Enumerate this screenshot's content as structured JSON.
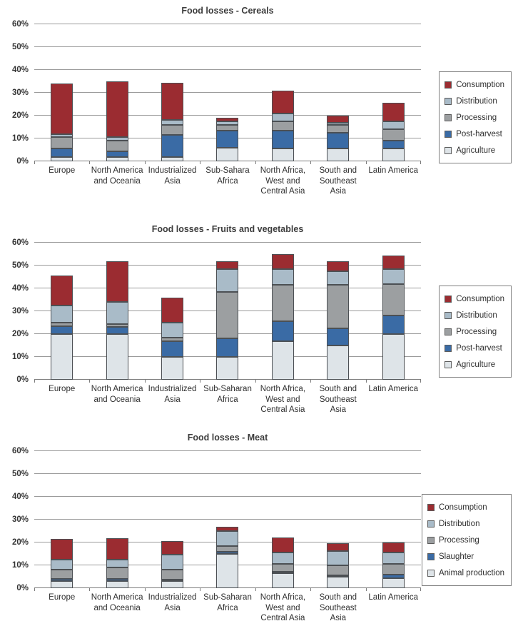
{
  "figure_name": "Food losses by region and supply-chain stage",
  "palette": {
    "consumption": "#9b2c31",
    "distribution": "#a9bbc8",
    "processing": "#9c9fa1",
    "post_harvest_blue": "#3a6ba5",
    "agriculture_light": "#dee4e8",
    "segment_outline": "#4c5054",
    "gridline": "#9b9b9b",
    "axis": "#7d7d7d",
    "text": "#2f2f2f"
  },
  "chart_data": [
    {
      "type": "bar",
      "stacked": true,
      "title": "Food losses - Cereals",
      "xlabel": "",
      "ylabel": "",
      "ylim": [
        0,
        60
      ],
      "grid": true,
      "legend_position": "right",
      "yticks": [
        "0%",
        "10%",
        "20%",
        "30%",
        "40%",
        "50%",
        "60%"
      ],
      "categories": [
        "Europe",
        "North America and Oceania",
        "Industrialized Asia",
        "Sub-Sahara Africa",
        "North Africa, West and Central Asia",
        "South and Southeast Asia",
        "Latin America"
      ],
      "series": [
        {
          "name": "Agriculture",
          "color": "#dee4e8",
          "values": [
            2,
            2,
            2,
            6,
            5.5,
            5.5,
            5.5
          ]
        },
        {
          "name": "Post-harvest",
          "color": "#3a6ba5",
          "values": [
            3.5,
            2.5,
            9.5,
            7.5,
            8,
            7,
            3.5
          ]
        },
        {
          "name": "Processing",
          "color": "#9c9fa1",
          "values": [
            5,
            4.5,
            4.5,
            2.5,
            4,
            3.5,
            5
          ]
        },
        {
          "name": "Distribution",
          "color": "#a9bbc8",
          "values": [
            1.5,
            1.5,
            2,
            1.5,
            3.5,
            1,
            3.5
          ]
        },
        {
          "name": "Consumption",
          "color": "#9b2c31",
          "values": [
            22,
            24.5,
            16.5,
            1.5,
            10,
            3,
            8
          ]
        }
      ],
      "legend_top_to_bottom": [
        "Consumption",
        "Distribution",
        "Processing",
        "Post-harvest",
        "Agriculture"
      ]
    },
    {
      "type": "bar",
      "stacked": true,
      "title": "Food losses - Fruits and vegetables",
      "xlabel": "",
      "ylabel": "",
      "ylim": [
        0,
        60
      ],
      "grid": true,
      "legend_position": "right",
      "yticks": [
        "0%",
        "10%",
        "20%",
        "30%",
        "40%",
        "50%",
        "60%"
      ],
      "categories": [
        "Europe",
        "North America and Oceania",
        "Industrialized Asia",
        "Sub-Saharan Africa",
        "North Africa, West and Central Asia",
        "South and Southeast Asia",
        "Latin America"
      ],
      "series": [
        {
          "name": "Agriculture",
          "color": "#dee4e8",
          "values": [
            20,
            20,
            10,
            10,
            17,
            15,
            20
          ]
        },
        {
          "name": "Post-harvest",
          "color": "#3a6ba5",
          "values": [
            3.5,
            3,
            7,
            8,
            8.5,
            7.5,
            8
          ]
        },
        {
          "name": "Processing",
          "color": "#9c9fa1",
          "values": [
            1.5,
            1.5,
            1.5,
            20.5,
            16,
            19,
            14
          ]
        },
        {
          "name": "Distribution",
          "color": "#a9bbc8",
          "values": [
            7.5,
            9.5,
            6.5,
            10,
            7,
            6,
            6.5
          ]
        },
        {
          "name": "Consumption",
          "color": "#9b2c31",
          "values": [
            13,
            18,
            11,
            3.5,
            6.5,
            4.5,
            6
          ]
        }
      ],
      "legend_top_to_bottom": [
        "Consumption",
        "Distribution",
        "Processing",
        "Post-harvest",
        "Agriculture"
      ]
    },
    {
      "type": "bar",
      "stacked": true,
      "title": "Food losses - Meat",
      "xlabel": "",
      "ylabel": "",
      "ylim": [
        0,
        60
      ],
      "grid": true,
      "legend_position": "right",
      "yticks": [
        "0%",
        "10%",
        "20%",
        "30%",
        "40%",
        "50%",
        "60%"
      ],
      "categories": [
        "Europe",
        "North America and Oceania",
        "Industrialized Asia",
        "Sub-Saharan Africa",
        "North Africa, West and Central Asia",
        "South and Southeast Asia",
        "Latin America"
      ],
      "series": [
        {
          "name": "Animal production",
          "color": "#dee4e8",
          "values": [
            3,
            3,
            3,
            15,
            6.5,
            5,
            4.5
          ]
        },
        {
          "name": "Slaughter",
          "color": "#3a6ba5",
          "values": [
            1,
            1,
            0.5,
            1,
            0.5,
            0.5,
            1.5
          ]
        },
        {
          "name": "Processing",
          "color": "#9c9fa1",
          "values": [
            4,
            5,
            4.5,
            2.5,
            3.5,
            4.5,
            4.5
          ]
        },
        {
          "name": "Distribution",
          "color": "#a9bbc8",
          "values": [
            4.5,
            3.5,
            6.5,
            6.5,
            5,
            6,
            5
          ]
        },
        {
          "name": "Consumption",
          "color": "#9b2c31",
          "values": [
            9,
            9.5,
            6,
            2,
            6.5,
            3.5,
            4.5
          ]
        }
      ],
      "legend_top_to_bottom": [
        "Consumption",
        "Distribution",
        "Processing",
        "Slaughter",
        "Animal production"
      ]
    }
  ]
}
